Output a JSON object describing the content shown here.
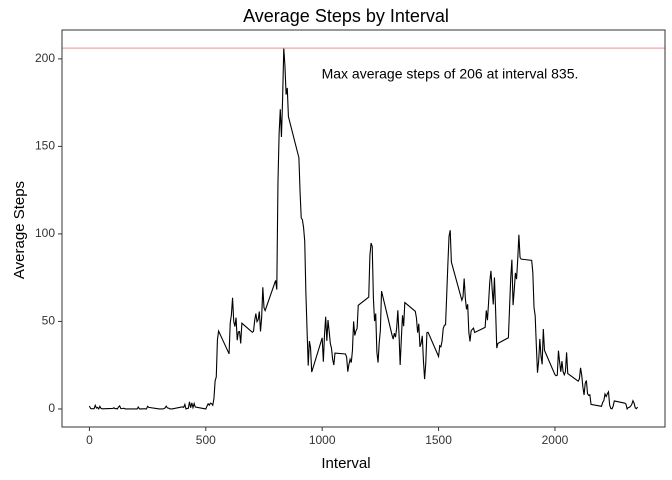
{
  "chart_data": {
    "type": "line",
    "title": "Average Steps by Interval",
    "x_label": "Interval",
    "y_label": "Average Steps",
    "annotation": "Max average steps of 206 at interval 835.",
    "hline": {
      "value": 206.17,
      "color": "#f28e8e"
    },
    "xlim": [
      -117.75,
      2472.75
    ],
    "xticks": [
      0,
      500,
      1000,
      1500,
      2000
    ],
    "ylim": [
      -10.3,
      216.5
    ],
    "yticks": [
      0,
      50,
      100,
      150,
      200
    ],
    "x": [
      0,
      5,
      10,
      15,
      20,
      25,
      30,
      35,
      40,
      45,
      50,
      55,
      100,
      105,
      110,
      115,
      120,
      125,
      130,
      135,
      140,
      145,
      150,
      155,
      200,
      205,
      210,
      215,
      220,
      225,
      230,
      235,
      240,
      245,
      250,
      255,
      300,
      305,
      310,
      315,
      320,
      325,
      330,
      335,
      340,
      345,
      350,
      355,
      400,
      405,
      410,
      415,
      420,
      425,
      430,
      435,
      440,
      445,
      450,
      455,
      500,
      505,
      510,
      515,
      520,
      525,
      530,
      535,
      540,
      545,
      550,
      555,
      600,
      605,
      610,
      615,
      620,
      625,
      630,
      635,
      640,
      645,
      650,
      655,
      700,
      705,
      710,
      715,
      720,
      725,
      730,
      735,
      740,
      745,
      750,
      755,
      800,
      805,
      810,
      815,
      820,
      825,
      830,
      835,
      840,
      845,
      850,
      855,
      900,
      905,
      910,
      915,
      920,
      925,
      930,
      935,
      940,
      945,
      950,
      955,
      1000,
      1005,
      1010,
      1015,
      1020,
      1025,
      1030,
      1035,
      1040,
      1045,
      1050,
      1055,
      1100,
      1105,
      1110,
      1115,
      1120,
      1125,
      1130,
      1135,
      1140,
      1145,
      1150,
      1155,
      1200,
      1205,
      1210,
      1215,
      1220,
      1225,
      1230,
      1235,
      1240,
      1245,
      1250,
      1255,
      1300,
      1305,
      1310,
      1315,
      1320,
      1325,
      1330,
      1335,
      1340,
      1345,
      1350,
      1355,
      1400,
      1405,
      1410,
      1415,
      1420,
      1425,
      1430,
      1435,
      1440,
      1445,
      1450,
      1455,
      1500,
      1505,
      1510,
      1515,
      1520,
      1525,
      1530,
      1535,
      1540,
      1545,
      1550,
      1555,
      1600,
      1605,
      1610,
      1615,
      1620,
      1625,
      1630,
      1635,
      1640,
      1645,
      1650,
      1655,
      1700,
      1705,
      1710,
      1715,
      1720,
      1725,
      1730,
      1735,
      1740,
      1745,
      1750,
      1755,
      1800,
      1805,
      1810,
      1815,
      1820,
      1825,
      1830,
      1835,
      1840,
      1845,
      1850,
      1855,
      1900,
      1905,
      1910,
      1915,
      1920,
      1925,
      1930,
      1935,
      1940,
      1945,
      1950,
      1955,
      2000,
      2005,
      2010,
      2015,
      2020,
      2025,
      2030,
      2035,
      2040,
      2045,
      2050,
      2055,
      2100,
      2105,
      2110,
      2115,
      2120,
      2125,
      2130,
      2135,
      2140,
      2145,
      2150,
      2155,
      2200,
      2205,
      2210,
      2215,
      2220,
      2225,
      2230,
      2235,
      2240,
      2245,
      2250,
      2255,
      2300,
      2305,
      2310,
      2315,
      2320,
      2325,
      2330,
      2335,
      2340,
      2345,
      2350,
      2355
    ],
    "series": [
      {
        "name": "Average Steps",
        "color": "#000000",
        "values": [
          1.7,
          0.3,
          0.1,
          0.2,
          0.1,
          2.1,
          0.5,
          0.9,
          0,
          1.5,
          0.3,
          0.1,
          0.3,
          0.7,
          0.2,
          0.3,
          0,
          1.1,
          1.8,
          0.2,
          0.2,
          0.4,
          0.3,
          0,
          0,
          0,
          1.1,
          0,
          0,
          0.1,
          0,
          0.2,
          0,
          0,
          1.5,
          0.9,
          0,
          0,
          0,
          0,
          0.2,
          0.6,
          1.6,
          0.6,
          0.5,
          0.1,
          0,
          0,
          1.2,
          0.9,
          2.6,
          0,
          0.3,
          0.4,
          4.1,
          0.7,
          3.5,
          0.8,
          3.1,
          1.1,
          0,
          1.6,
          3,
          2.2,
          3.3,
          3,
          2.1,
          6,
          16,
          18.3,
          39.5,
          44.5,
          31.5,
          49.3,
          53.8,
          63.5,
          50,
          47.1,
          52.2,
          39.3,
          44,
          44.2,
          37.4,
          49,
          43.8,
          44.4,
          50.5,
          54.5,
          49.9,
          51,
          55.7,
          44.3,
          52.3,
          69.5,
          57.8,
          56.2,
          73.4,
          68.2,
          129.4,
          157.5,
          171.2,
          155.4,
          177.3,
          206.2,
          195.9,
          179.6,
          183.4,
          167,
          143.5,
          124,
          109.1,
          108.1,
          103.7,
          95.9,
          66.2,
          45.2,
          24.8,
          38.8,
          35,
          21.1,
          40.6,
          27,
          42.4,
          52.7,
          38.9,
          50.8,
          44.3,
          37.4,
          34.7,
          28.3,
          25.1,
          31.9,
          31.4,
          29.7,
          21.3,
          25.5,
          28.4,
          26.5,
          33.4,
          50,
          42,
          44.6,
          46,
          59.2,
          63.9,
          87.7,
          94.8,
          92.8,
          63.4,
          50.2,
          54.5,
          32.4,
          26.5,
          37.7,
          45.1,
          67.3,
          42.3,
          39.9,
          43.3,
          40.98,
          46.2,
          56.4,
          42.8,
          25.1,
          39.97,
          53.5,
          47.3,
          60.8,
          55.8,
          51.96,
          43.6,
          48.7,
          35.5,
          37.5,
          41.8,
          27.5,
          17.1,
          26.1,
          43.6,
          43.8,
          30,
          36.1,
          35.5,
          38.8,
          45.96,
          47.8,
          48.1,
          65.3,
          82.9,
          98.7,
          102.1,
          83.96,
          62.1,
          64.1,
          74.5,
          63.2,
          56.9,
          59.8,
          43.9,
          38.6,
          44.7,
          45.5,
          46.2,
          43.7,
          46.6,
          56.3,
          50.7,
          61.2,
          72.7,
          78.9,
          68.9,
          59.7,
          75.1,
          56.5,
          34.8,
          37.5,
          40.7,
          58,
          74.7,
          85.3,
          59.3,
          67.8,
          77.7,
          74.2,
          85.3,
          99.5,
          86.6,
          85.6,
          84.9,
          77.8,
          58,
          53.4,
          36.3,
          20.7,
          27.4,
          40,
          30.2,
          25.5,
          45.7,
          33.5,
          19.6,
          19,
          19.3,
          33.3,
          26.8,
          21.2,
          27.3,
          21.3,
          19.5,
          21.3,
          32.3,
          20.2,
          15.9,
          17.2,
          23.5,
          19.2,
          12.5,
          8,
          14.7,
          16.3,
          8.7,
          7.8,
          8.1,
          2.6,
          1.5,
          3.7,
          4.8,
          8.5,
          7.1,
          8.7,
          9.8,
          2.2,
          0.3,
          0.1,
          1.6,
          4.6,
          3.3,
          2.8,
          0,
          0.8,
          1,
          1.6,
          2.6,
          4.7,
          3.3,
          0.6,
          0.2,
          1.1
        ]
      }
    ]
  }
}
